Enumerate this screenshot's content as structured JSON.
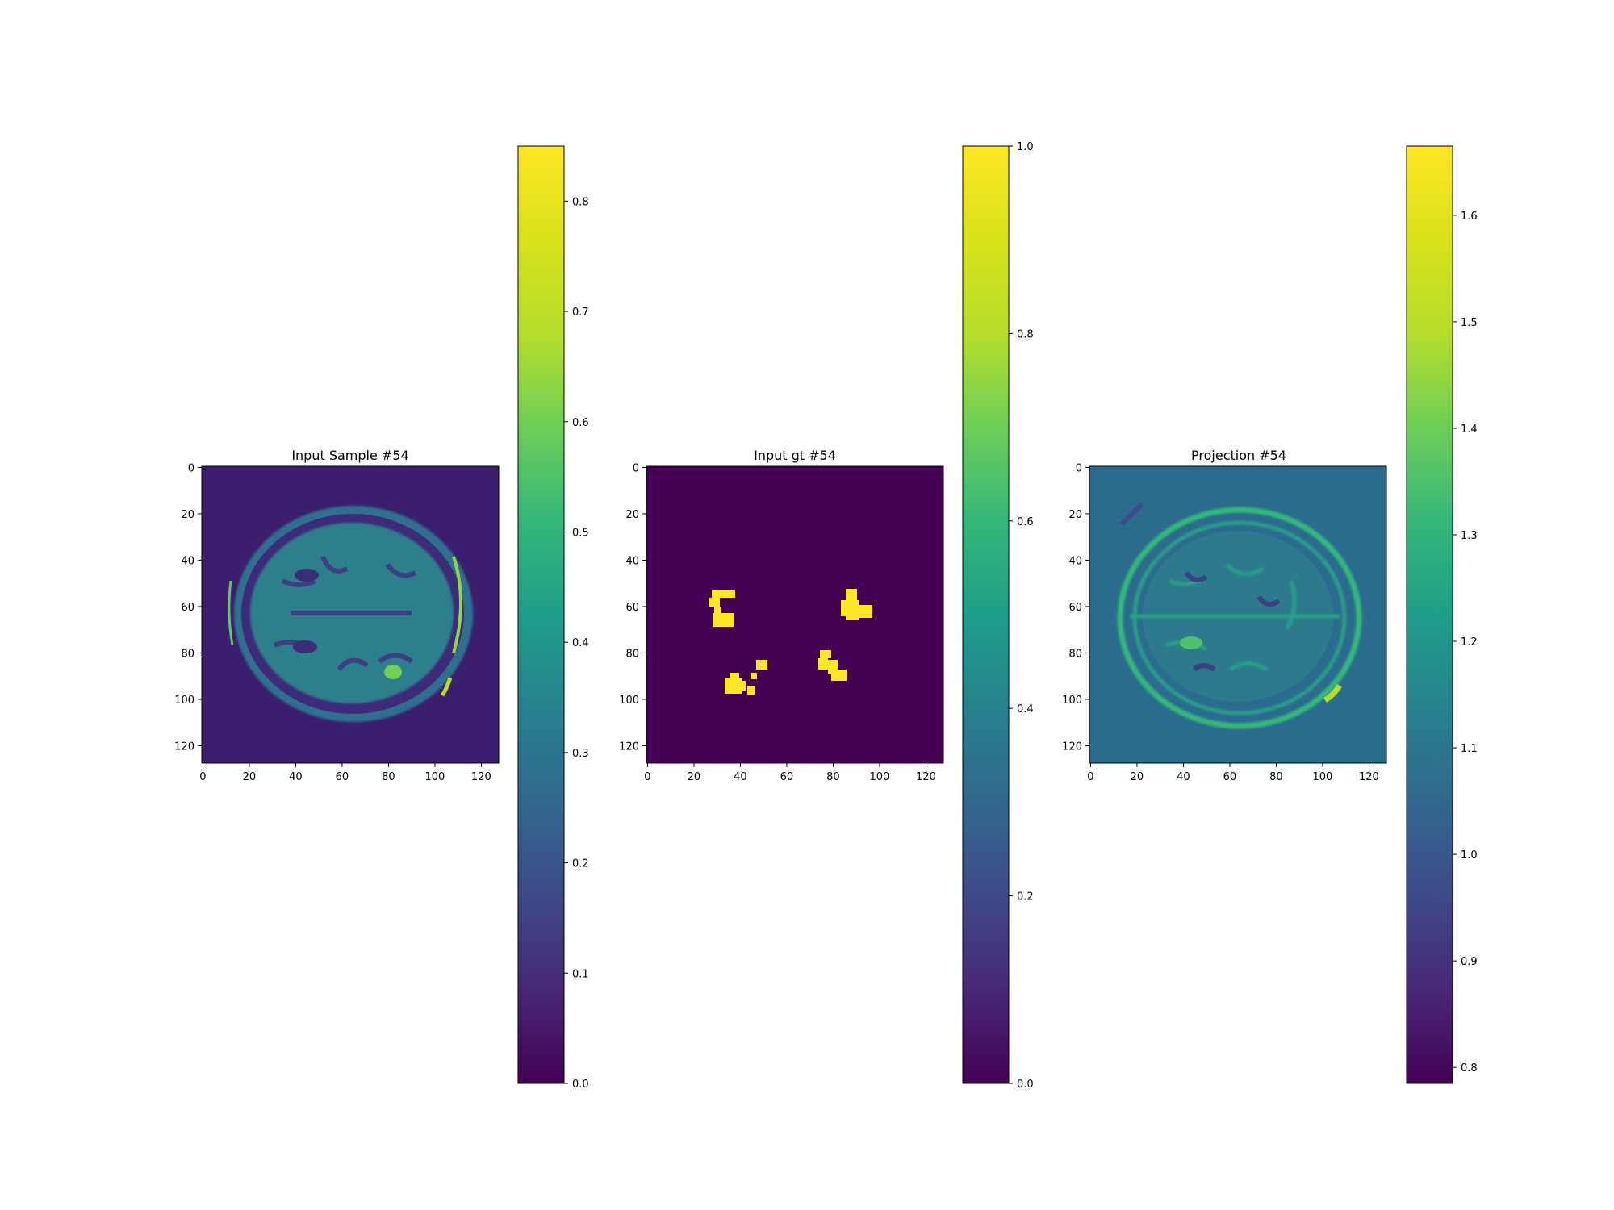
{
  "figure": {
    "panels": [
      {
        "title": "Input Sample #54",
        "image_kind": "brain-mri",
        "x_ticks": [
          "0",
          "20",
          "40",
          "60",
          "80",
          "100",
          "120"
        ],
        "y_ticks": [
          "0",
          "20",
          "40",
          "60",
          "80",
          "100",
          "120"
        ],
        "colorbar": {
          "min": 0.0,
          "max": 0.85,
          "ticks": [
            "0.0",
            "0.1",
            "0.2",
            "0.3",
            "0.4",
            "0.5",
            "0.6",
            "0.7",
            "0.8"
          ]
        }
      },
      {
        "title": "Input gt #54",
        "image_kind": "lesion-mask",
        "x_ticks": [
          "0",
          "20",
          "40",
          "60",
          "80",
          "100",
          "120"
        ],
        "y_ticks": [
          "0",
          "20",
          "40",
          "60",
          "80",
          "100",
          "120"
        ],
        "colorbar": {
          "min": 0.0,
          "max": 1.0,
          "ticks": [
            "0.0",
            "0.2",
            "0.4",
            "0.6",
            "0.8",
            "1.0"
          ]
        }
      },
      {
        "title": "Projection #54",
        "image_kind": "projection-map",
        "x_ticks": [
          "0",
          "20",
          "40",
          "60",
          "80",
          "100",
          "120"
        ],
        "y_ticks": [
          "0",
          "20",
          "40",
          "60",
          "80",
          "100",
          "120"
        ],
        "colorbar": {
          "min": 0.785,
          "max": 1.665,
          "ticks": [
            "0.8",
            "0.9",
            "1.0",
            "1.1",
            "1.2",
            "1.3",
            "1.4",
            "1.5",
            "1.6"
          ]
        }
      }
    ]
  },
  "chart_data": [
    {
      "type": "heatmap",
      "title": "Input Sample #54",
      "xlabel": "",
      "ylabel": "",
      "xlim": [
        0,
        128
      ],
      "ylim": [
        128,
        0
      ],
      "colormap": "viridis",
      "value_range": [
        0.0,
        0.85
      ],
      "colorbar_ticks": [
        0.0,
        0.1,
        0.2,
        0.3,
        0.4,
        0.5,
        0.6,
        0.7,
        0.8
      ]
    },
    {
      "type": "heatmap",
      "title": "Input gt #54",
      "xlabel": "",
      "ylabel": "",
      "xlim": [
        0,
        128
      ],
      "ylim": [
        128,
        0
      ],
      "colormap": "viridis",
      "value_range": [
        0.0,
        1.0
      ],
      "colorbar_ticks": [
        0.0,
        0.2,
        0.4,
        0.6,
        0.8,
        1.0
      ]
    },
    {
      "type": "heatmap",
      "title": "Projection #54",
      "xlabel": "",
      "ylabel": "",
      "xlim": [
        0,
        128
      ],
      "ylim": [
        128,
        0
      ],
      "colormap": "viridis",
      "value_range": [
        0.785,
        1.665
      ],
      "colorbar_ticks": [
        0.8,
        0.9,
        1.0,
        1.1,
        1.2,
        1.3,
        1.4,
        1.5,
        1.6
      ]
    }
  ]
}
